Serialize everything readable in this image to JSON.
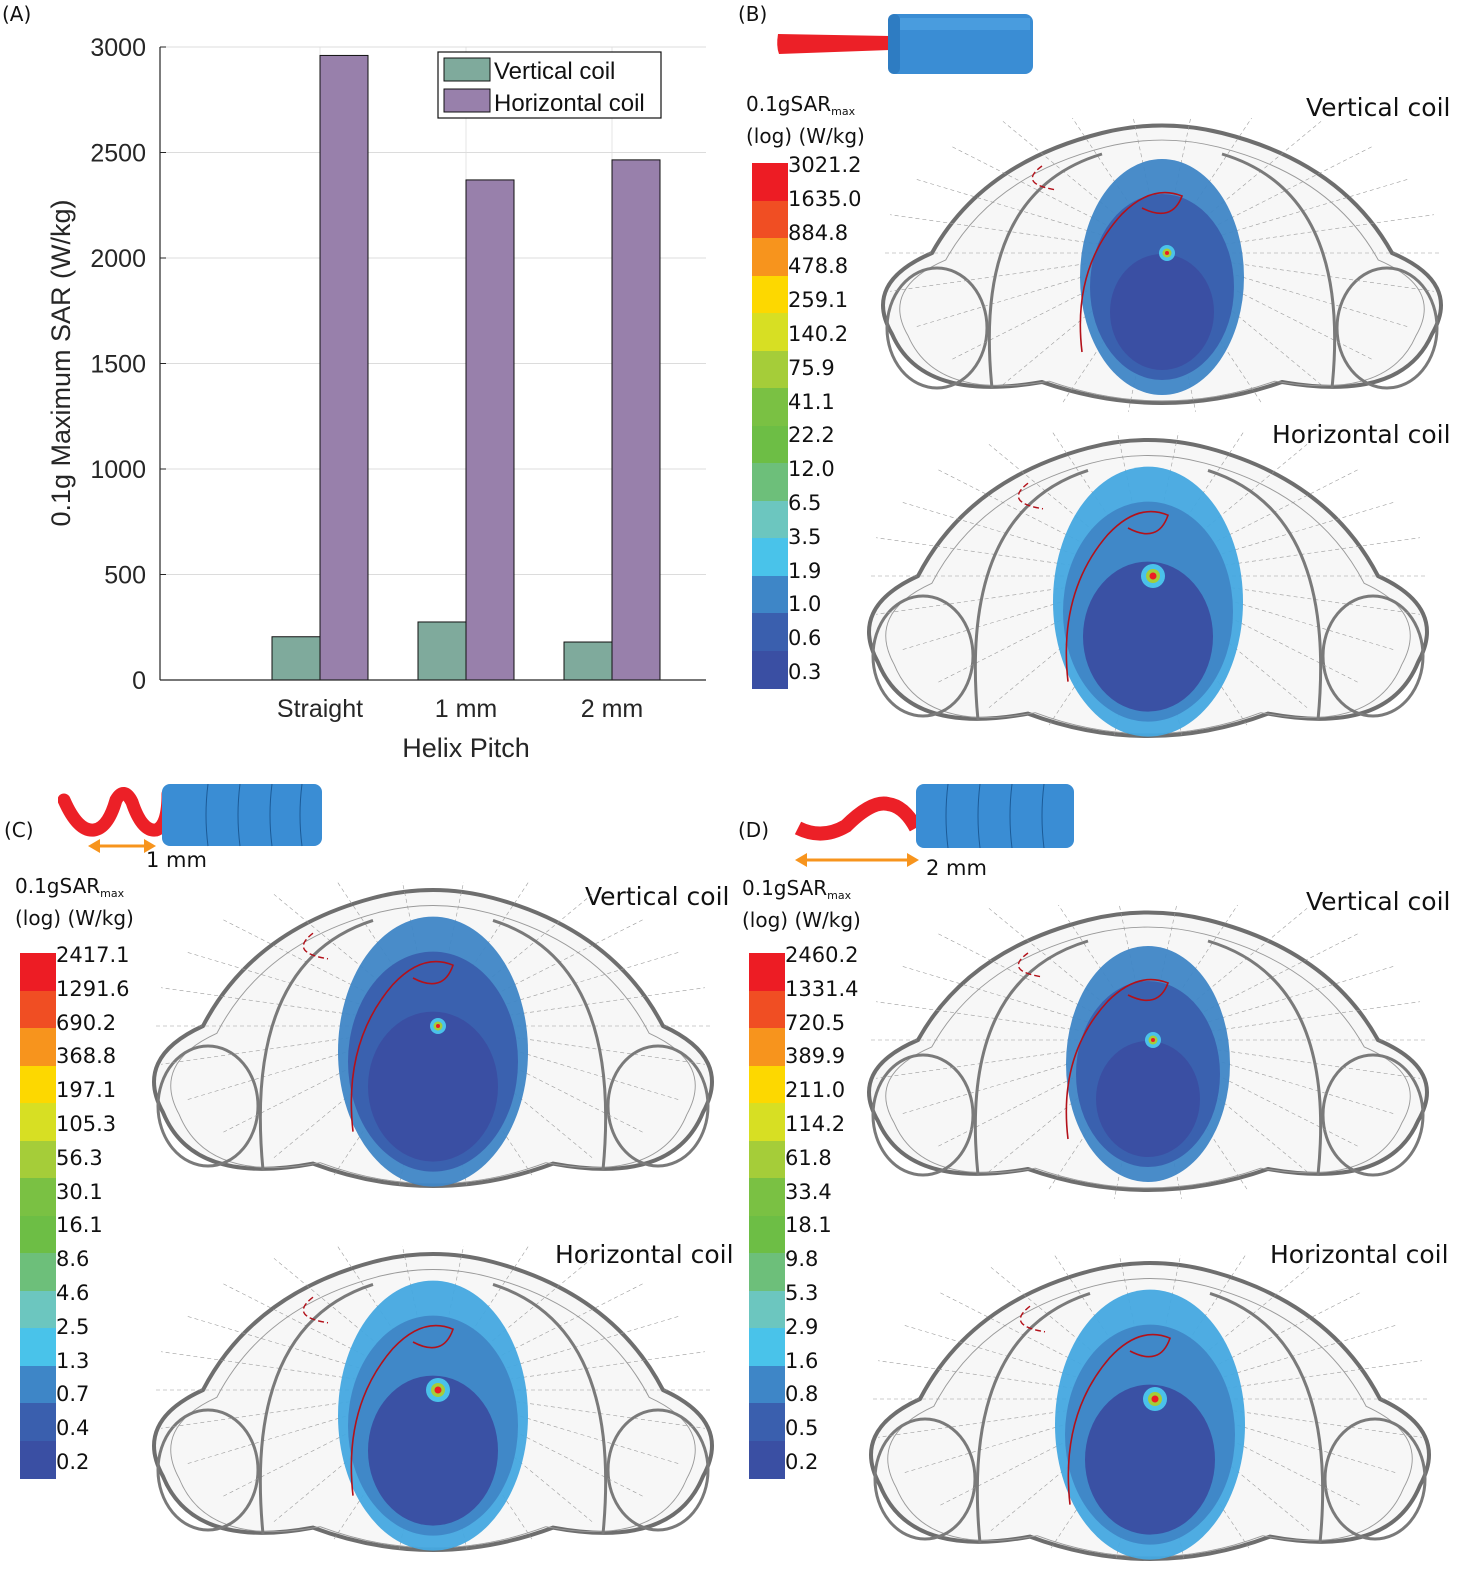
{
  "figure": {
    "panels": {
      "A": {
        "label": "(A)"
      },
      "B": {
        "label": "(B)",
        "lead_shape": "straight",
        "colorbar_title": "0.1gSAR",
        "colorbar_title_sub": "max",
        "colorbar_units": "(log) (W/kg)",
        "coil_labels": [
          "Vertical coil",
          "Horizontal coil"
        ],
        "colorbar_ticks": [
          "3021.2",
          "1635.0",
          "884.8",
          "478.8",
          "259.1",
          "140.2",
          "75.9",
          "41.1",
          "22.2",
          "12.0",
          "6.5",
          "3.5",
          "1.9",
          "1.0",
          "0.6",
          "0.3"
        ]
      },
      "C": {
        "label": "(C)",
        "lead_shape": "helix",
        "pitch_label": "1 mm",
        "colorbar_title": "0.1gSAR",
        "colorbar_title_sub": "max",
        "colorbar_units": "(log) (W/kg)",
        "coil_labels": [
          "Vertical coil",
          "Horizontal coil"
        ],
        "colorbar_ticks": [
          "2417.1",
          "1291.6",
          "690.2",
          "368.8",
          "197.1",
          "105.3",
          "56.3",
          "30.1",
          "16.1",
          "8.6",
          "4.6",
          "2.5",
          "1.3",
          "0.7",
          "0.4",
          "0.2"
        ]
      },
      "D": {
        "label": "(D)",
        "lead_shape": "helix",
        "pitch_label": "2 mm",
        "colorbar_title": "0.1gSAR",
        "colorbar_title_sub": "max",
        "colorbar_units": "(log) (W/kg)",
        "coil_labels": [
          "Vertical coil",
          "Horizontal coil"
        ],
        "colorbar_ticks": [
          "2460.2",
          "1331.4",
          "720.5",
          "389.9",
          "211.0",
          "114.2",
          "61.8",
          "33.4",
          "18.1",
          "9.8",
          "5.3",
          "2.9",
          "1.6",
          "0.8",
          "0.5",
          "0.2"
        ]
      }
    },
    "colormap": [
      "#ed1c24",
      "#f04e23",
      "#f7941d",
      "#fdd800",
      "#d7df23",
      "#a5cd39",
      "#7ac143",
      "#6bbf47",
      "#6cc17c",
      "#6cc5be",
      "#4ac2ea",
      "#3f86c6",
      "#3b5faf",
      "#3a4ea2"
    ],
    "colorbar_band_colors": [
      "#ed1c24",
      "#f04e23",
      "#f7941d",
      "#fdd800",
      "#d7df23",
      "#a5cd39",
      "#7ac143",
      "#6dbe45",
      "#6dbf7a",
      "#6cc6bf",
      "#49c3ea",
      "#3e86c7",
      "#3a5fae",
      "#3a4fa3"
    ]
  },
  "chart_data": {
    "type": "bar",
    "title": "",
    "xlabel": "Helix Pitch",
    "ylabel": "0.1g Maximum SAR (W/kg)",
    "categories": [
      "Straight",
      "1 mm",
      "2 mm"
    ],
    "ylim": [
      0,
      3000
    ],
    "yticks": [
      0,
      500,
      1000,
      1500,
      2000,
      2500,
      3000
    ],
    "grid": true,
    "legend_position": "top-right",
    "series": [
      {
        "name": "Vertical coil",
        "color": "#7faa9c",
        "values": [
          205,
          275,
          180
        ]
      },
      {
        "name": "Horizontal coil",
        "color": "#9880ab",
        "values": [
          2960,
          2370,
          2465
        ]
      }
    ]
  }
}
